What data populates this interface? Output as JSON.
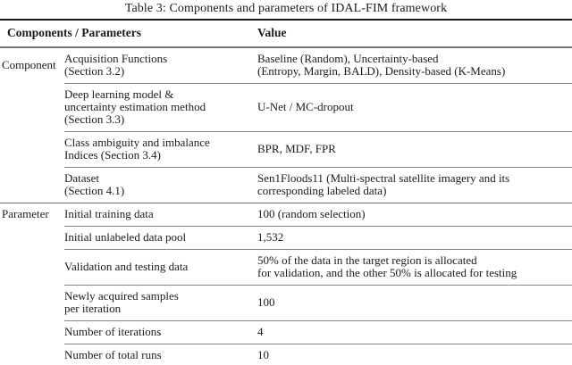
{
  "title": "Table 3: Components and parameters of IDAL-FIM framework",
  "header": {
    "components_parameters": "Components / Parameters",
    "value": "Value"
  },
  "sections": [
    {
      "group": "Component",
      "rows": [
        {
          "param": [
            "Acquisition Functions",
            "(Section 3.2)"
          ],
          "value": [
            "Baseline (Random), Uncertainty-based",
            "(Entropy, Margin, BALD), Density-based (K-Means)"
          ]
        },
        {
          "param": [
            "Deep learning model &",
            "uncertainty estimation method",
            "(Section 3.3)"
          ],
          "value": [
            "U-Net / MC-dropout"
          ]
        },
        {
          "param": [
            "Class ambiguity and imbalance",
            "Indices (Section 3.4)"
          ],
          "value": [
            "BPR, MDF, FPR"
          ]
        },
        {
          "param": [
            "Dataset",
            "(Section 4.1)"
          ],
          "value": [
            "Sen1Floods11 (Multi-spectral satellite imagery and its",
            "corresponding labeled data)"
          ]
        }
      ]
    },
    {
      "group": "Parameter",
      "rows": [
        {
          "param": [
            "Initial training data"
          ],
          "value": [
            "100 (random selection)"
          ]
        },
        {
          "param": [
            "Initial unlabeled data pool"
          ],
          "value": [
            "1,532"
          ]
        },
        {
          "param": [
            "Validation and testing data"
          ],
          "value": [
            "50% of the data in the target region is allocated",
            "for validation, and the other 50% is allocated for testing"
          ]
        },
        {
          "param": [
            "Newly acquired samples",
            "per iteration"
          ],
          "value": [
            "100"
          ]
        },
        {
          "param": [
            "Number of iterations"
          ],
          "value": [
            "4"
          ]
        },
        {
          "param": [
            "Number of total runs"
          ],
          "value": [
            "10"
          ]
        }
      ]
    }
  ],
  "colors": {
    "background": "#ffffff",
    "text": "#1c1c1c",
    "rule_heavy": "#1a1a1a",
    "rule_mid": "#6e6e6e",
    "rule_light": "#8a8a8a"
  }
}
